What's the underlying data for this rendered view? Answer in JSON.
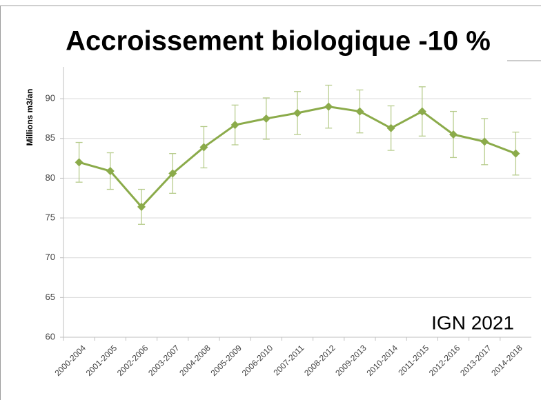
{
  "chart_data": {
    "type": "line",
    "title": "Accroissement biologique -10 %",
    "y_label": "Millions m3/an",
    "annotation": "IGN 2021",
    "categories": [
      "2000-2004",
      "2001-2005",
      "2002-2006",
      "2003-2007",
      "2004-2008",
      "2005-2009",
      "2006-2010",
      "2007-2011",
      "2008-2012",
      "2009-2013",
      "2010-2014",
      "2011-2015",
      "2012-2016",
      "2013-2017",
      "2014-2018"
    ],
    "values": [
      82.0,
      80.9,
      76.4,
      80.6,
      83.9,
      86.7,
      87.5,
      88.2,
      89.0,
      88.4,
      86.3,
      88.4,
      85.5,
      84.6,
      83.1
    ],
    "errors": [
      2.5,
      2.3,
      2.2,
      2.5,
      2.6,
      2.5,
      2.6,
      2.7,
      2.7,
      2.7,
      2.8,
      3.1,
      2.9,
      2.9,
      2.7
    ],
    "color": "#8bab4a",
    "error_color": "#b7cc8c",
    "ylim": [
      60,
      94
    ],
    "yticks": [
      60,
      65,
      70,
      75,
      80,
      85,
      90
    ],
    "grid": true
  }
}
